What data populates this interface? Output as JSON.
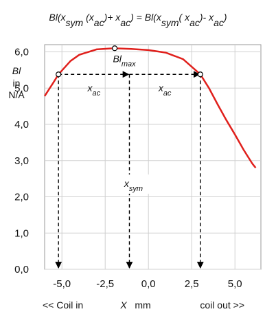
{
  "chart_data": {
    "type": "line",
    "title": [
      "Bl(x",
      "sym",
      " (x",
      "ac",
      ")+ x",
      "ac",
      ") = Bl(x",
      "sym",
      "( x",
      "ac",
      ")- x",
      "ac",
      ")"
    ],
    "ylabel": [
      "Bl",
      "in",
      "N/A"
    ],
    "xlabel": {
      "left": "<< Coil in",
      "name": "X",
      "unit": "mm",
      "right": "coil out >>"
    },
    "x": [
      -6.0,
      -5.5,
      -5.2,
      -4.5,
      -4.0,
      -3.0,
      -2.0,
      -1.0,
      0.0,
      1.0,
      2.0,
      3.0,
      3.5,
      4.0,
      4.5,
      5.0,
      5.5,
      6.0,
      6.2
    ],
    "values": [
      4.78,
      5.15,
      5.38,
      5.75,
      5.92,
      6.07,
      6.1,
      6.08,
      6.05,
      5.98,
      5.8,
      5.38,
      5.0,
      4.55,
      4.12,
      3.72,
      3.3,
      2.92,
      2.8
    ],
    "color": "#e0201c",
    "markers": {
      "x": [
        -5.2,
        -1.95,
        3.0
      ],
      "y": [
        5.38,
        6.1,
        5.38
      ]
    },
    "max_label": [
      "Bl",
      "max"
    ],
    "x_sym": -1.1,
    "ac_label": [
      "x",
      "ac"
    ],
    "sym_label": [
      "x",
      "sym"
    ],
    "xlim": [
      -6,
      6.5
    ],
    "ylim": [
      0,
      6.2
    ],
    "xticks": [
      {
        "value": -5,
        "label": "-5,0"
      },
      {
        "value": -2.5,
        "label": "-2,5"
      },
      {
        "value": 0,
        "label": "0,0"
      },
      {
        "value": 2.5,
        "label": "2,5"
      },
      {
        "value": 5,
        "label": "5,0"
      }
    ],
    "yticks": [
      {
        "value": 0,
        "label": "0,0"
      },
      {
        "value": 1,
        "label": "1,0"
      },
      {
        "value": 2,
        "label": "2,0"
      },
      {
        "value": 3,
        "label": "3,0"
      },
      {
        "value": 4,
        "label": "4,0"
      },
      {
        "value": 5,
        "label": "5,0"
      },
      {
        "value": 6,
        "label": "6,0"
      }
    ],
    "grid": true
  }
}
